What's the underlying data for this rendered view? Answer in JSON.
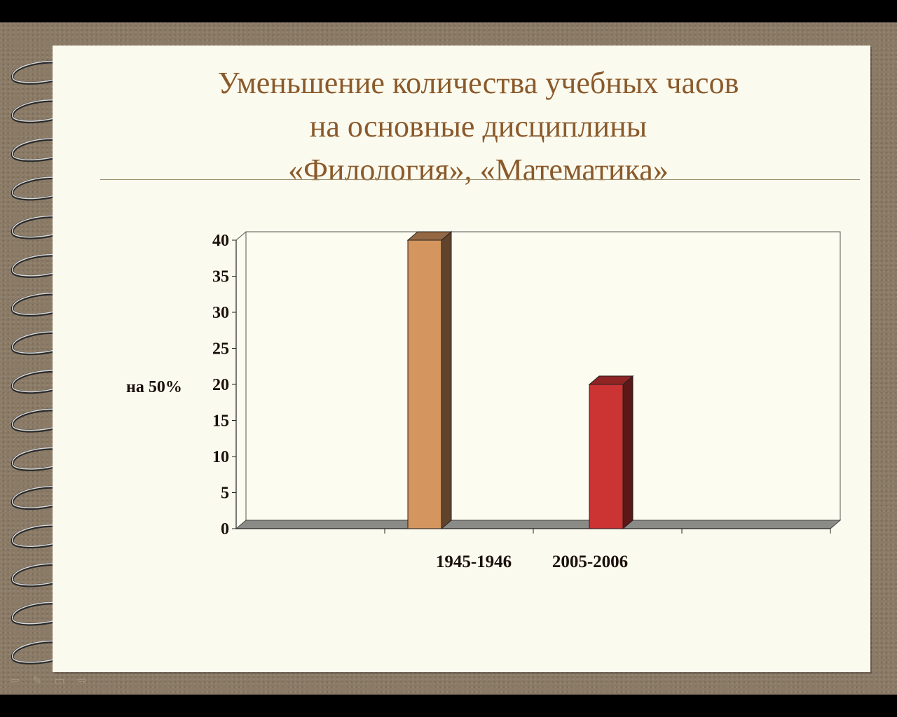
{
  "title_lines": [
    "Уменьшение количества учебных часов",
    "на основные дисциплины",
    "«Филология», «Математика»"
  ],
  "chart_data": {
    "type": "bar",
    "categories": [
      "1945-1946",
      "2005-2006"
    ],
    "values": [
      40,
      20
    ],
    "bar_colors": [
      "#d4955f",
      "#cc3333"
    ],
    "yticks": [
      0,
      5,
      10,
      15,
      20,
      25,
      30,
      35,
      40
    ],
    "ylim": [
      0,
      40
    ],
    "annotation": "на 50%",
    "grid": false
  },
  "nav": {
    "icons": [
      "prev-arrow-icon",
      "pen-icon",
      "menu-icon",
      "next-arrow-icon"
    ]
  }
}
